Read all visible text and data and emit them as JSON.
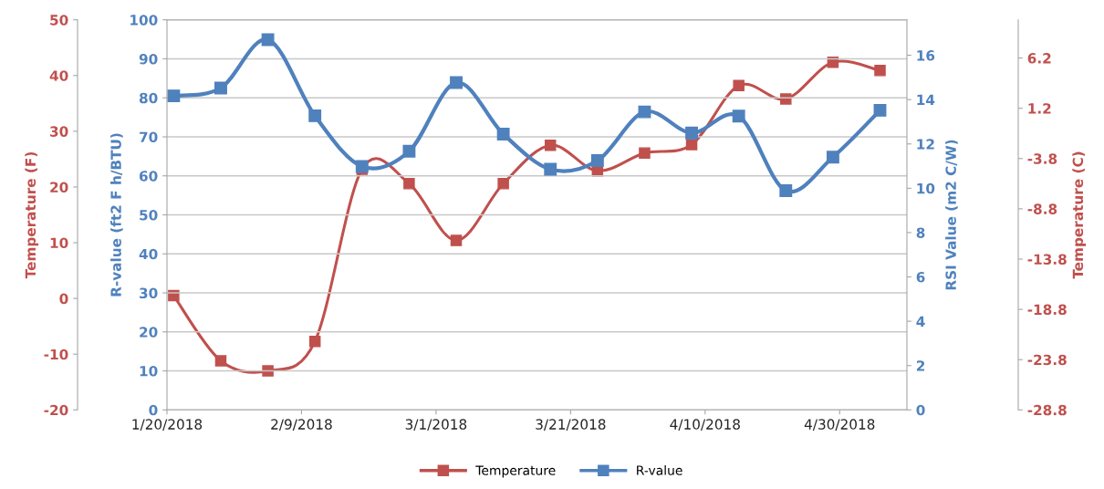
{
  "chart_data": [
    {
      "type": "line",
      "x": [
        "2018-01-21",
        "2018-01-28",
        "2018-02-04",
        "2018-02-11",
        "2018-02-18",
        "2018-02-25",
        "2018-03-04",
        "2018-03-11",
        "2018-03-18",
        "2018-03-25",
        "2018-04-01",
        "2018-04-08",
        "2018-04-15",
        "2018-04-22",
        "2018-04-29",
        "2018-05-06"
      ],
      "series": [
        {
          "name": "R-value",
          "color": "#4f81bd",
          "values": [
            80.5,
            82.5,
            94.9,
            75.4,
            62.4,
            66.3,
            83.9,
            70.7,
            61.7,
            63.9,
            76.4,
            71.0,
            75.3,
            56.2,
            64.8,
            76.8
          ]
        }
      ],
      "xlim": [
        "2018-01-20",
        "2018-05-10"
      ],
      "xticks": [
        {
          "value": "2018-01-20",
          "label": "1/20/2018"
        },
        {
          "value": "2018-02-09",
          "label": "2/9/2018"
        },
        {
          "value": "2018-03-01",
          "label": "3/1/2018"
        },
        {
          "value": "2018-03-21",
          "label": "3/21/2018"
        },
        {
          "value": "2018-04-10",
          "label": "4/10/2018"
        },
        {
          "value": "2018-04-30",
          "label": "4/30/2018"
        }
      ],
      "ylabel": "R-value (ft2 F h/BTU)",
      "ylim": [
        0,
        100
      ],
      "yticks": [
        0,
        10,
        20,
        30,
        40,
        50,
        60,
        70,
        80,
        90,
        100
      ],
      "y2label": "RSI Value (m2 C/W)",
      "y2lim": [
        0,
        17.6
      ],
      "y2ticks": [
        0,
        2,
        4,
        6,
        8,
        10,
        12,
        14,
        16
      ],
      "grid": "y",
      "legend": "bottom",
      "marker": "square",
      "line_style": "solid"
    },
    {
      "type": "line",
      "x": [
        "2018-01-21",
        "2018-01-28",
        "2018-02-04",
        "2018-02-11",
        "2018-02-18",
        "2018-02-25",
        "2018-03-04",
        "2018-03-11",
        "2018-03-18",
        "2018-03-25",
        "2018-04-01",
        "2018-04-08",
        "2018-04-15",
        "2018-04-22",
        "2018-04-29",
        "2018-05-06"
      ],
      "series": [
        {
          "name": "Temperature",
          "color": "#c0504d",
          "values": [
            0.5,
            -11.2,
            -13.0,
            -7.7,
            23.2,
            20.6,
            10.4,
            20.6,
            27.5,
            22.9,
            26.1,
            27.6,
            38.2,
            35.8,
            42.4,
            40.9
          ]
        }
      ],
      "xlim": [
        "2018-01-20",
        "2018-05-10"
      ],
      "ylabel": "Temperature (F)",
      "ylim": [
        -20,
        50
      ],
      "yticks": [
        -20,
        -10,
        0,
        10,
        20,
        30,
        40,
        50
      ],
      "y2label": "Temperature (C)",
      "y2lim": [
        -28.8,
        10
      ],
      "y2ticks": [
        -28.8,
        -23.8,
        -18.8,
        -13.8,
        -8.8,
        -3.8,
        1.2,
        6.2
      ],
      "tick_labels": "y",
      "legend": "bottom",
      "marker": "square",
      "line_style": "solid"
    }
  ]
}
